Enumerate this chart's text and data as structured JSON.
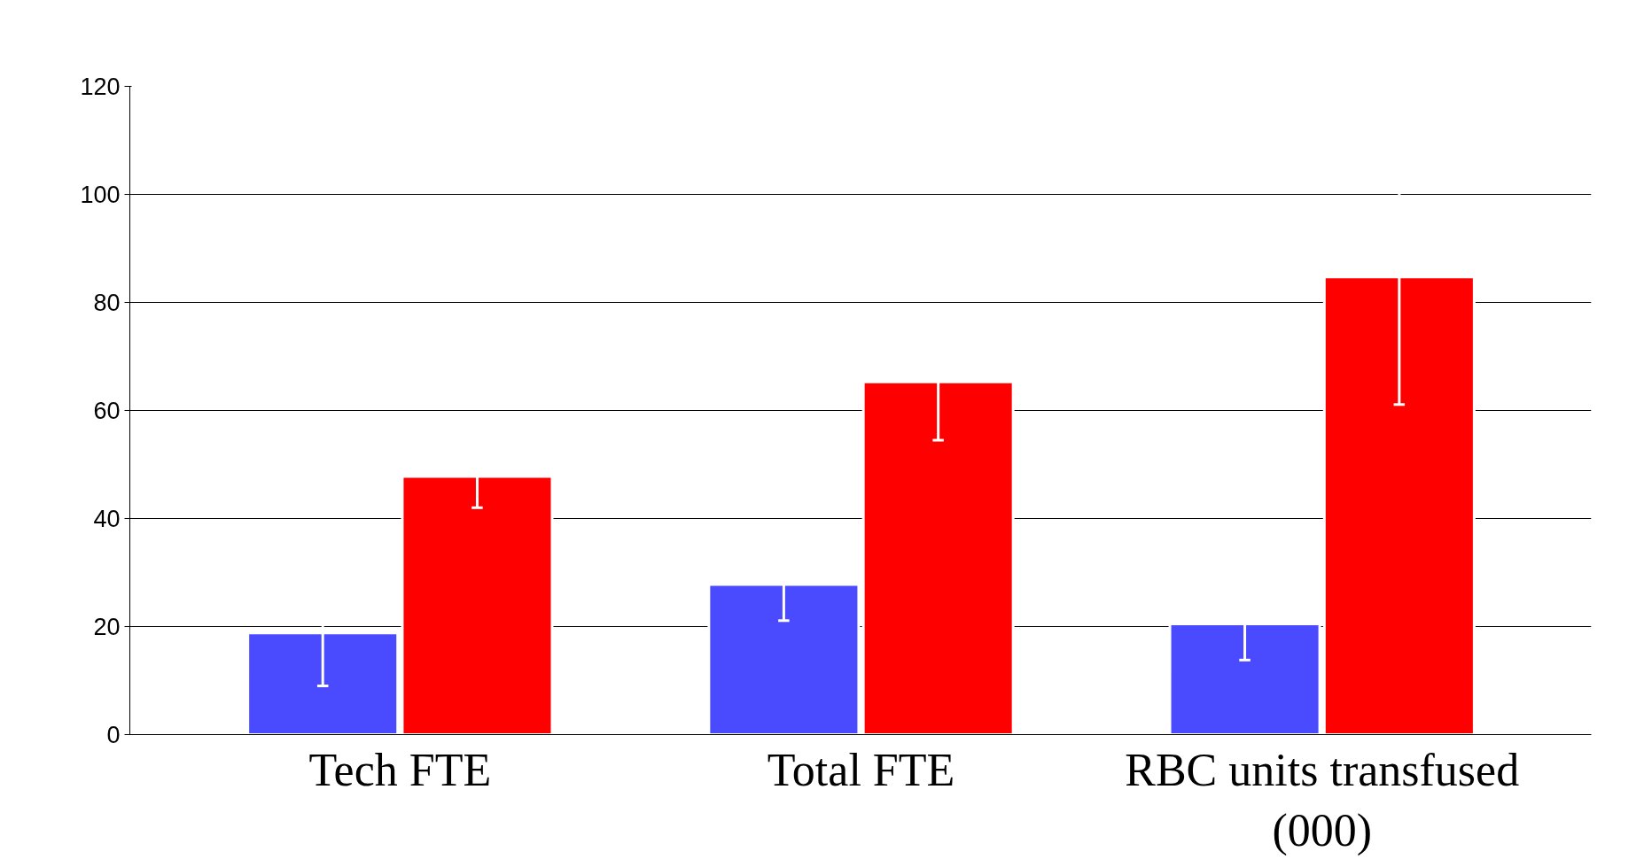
{
  "chart_data": {
    "type": "bar",
    "categories": [
      "Tech FTE",
      "Total FTE",
      "RBC units transfused (000)"
    ],
    "series": [
      {
        "color": "#4a4aff",
        "values": [
          18.8,
          27.8,
          20.5
        ],
        "errors": [
          9.8,
          6.7,
          6.7
        ]
      },
      {
        "color": "#ff0000",
        "values": [
          47.8,
          65.3,
          84.7
        ],
        "errors": [
          5.8,
          10.8,
          23.6
        ]
      }
    ],
    "ylim": [
      0,
      120
    ],
    "yticks": [
      0,
      20,
      40,
      60,
      80,
      100,
      120
    ],
    "grid": "y"
  }
}
